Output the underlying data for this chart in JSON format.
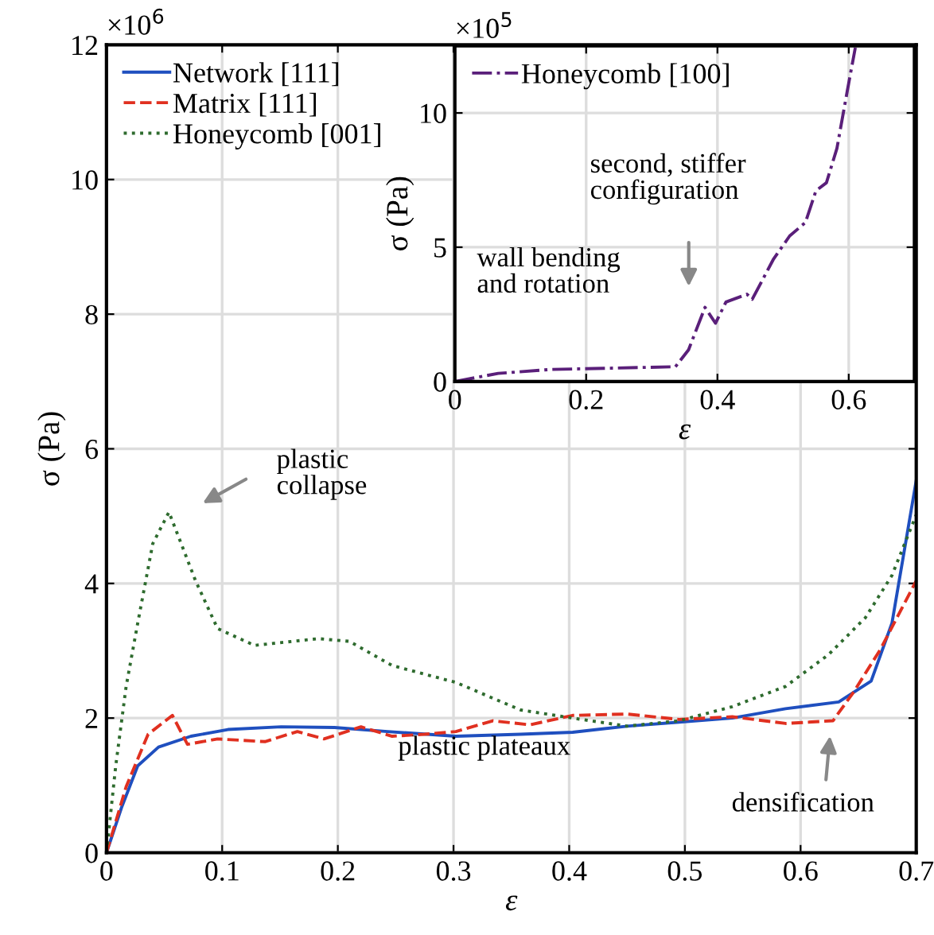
{
  "chart_data": [
    {
      "type": "line",
      "xlabel": "ε",
      "ylabel": "σ (Pa)",
      "xlim": [
        0,
        0.7
      ],
      "ylim": [
        0,
        12
      ],
      "xticks": [
        0,
        0.1,
        0.2,
        0.3,
        0.4,
        0.5,
        0.6,
        0.7
      ],
      "yticks": [
        0,
        2,
        4,
        6,
        8,
        10,
        12
      ],
      "grid": true,
      "legend": "top left",
      "series": [
        {
          "name": "Network [111]",
          "color": "#1f4fbf",
          "line_style": "solid",
          "x": [
            0,
            0.013,
            0.027,
            0.045,
            0.073,
            0.105,
            0.151,
            0.197,
            0.243,
            0.302,
            0.358,
            0.403,
            0.45,
            0.495,
            0.541,
            0.587,
            0.633,
            0.661,
            0.679,
            0.7
          ],
          "values": [
            0,
            0.67,
            1.29,
            1.57,
            1.73,
            1.83,
            1.87,
            1.86,
            1.8,
            1.73,
            1.76,
            1.79,
            1.88,
            1.94,
            2.0,
            2.14,
            2.24,
            2.55,
            3.41,
            5.53
          ]
        },
        {
          "name": "Matrix [111]",
          "color": "#e03020",
          "line_style": "dashed",
          "x": [
            0,
            0.017,
            0.036,
            0.057,
            0.07,
            0.096,
            0.137,
            0.165,
            0.188,
            0.22,
            0.247,
            0.275,
            0.302,
            0.334,
            0.366,
            0.403,
            0.45,
            0.495,
            0.541,
            0.587,
            0.628,
            0.646,
            0.669,
            0.7
          ],
          "values": [
            0,
            0.98,
            1.76,
            2.04,
            1.61,
            1.69,
            1.65,
            1.8,
            1.69,
            1.87,
            1.73,
            1.76,
            1.8,
            1.96,
            1.9,
            2.04,
            2.06,
            1.98,
            2.02,
            1.92,
            1.96,
            2.39,
            3.02,
            4.04
          ]
        },
        {
          "name": "Honeycomb [001]",
          "color": "#2e6b2e",
          "line_style": "dotted",
          "x": [
            0,
            0.008,
            0.017,
            0.027,
            0.04,
            0.054,
            0.077,
            0.096,
            0.128,
            0.183,
            0.21,
            0.247,
            0.302,
            0.358,
            0.403,
            0.45,
            0.495,
            0.541,
            0.587,
            0.624,
            0.656,
            0.679,
            0.7
          ],
          "values": [
            0,
            1.29,
            2.47,
            3.41,
            4.59,
            5.06,
            4.04,
            3.33,
            3.08,
            3.18,
            3.14,
            2.78,
            2.53,
            2.12,
            2.0,
            1.88,
            1.96,
            2.17,
            2.47,
            2.94,
            3.49,
            4.12,
            5.02
          ]
        }
      ],
      "annotations": [
        "×10$^{6}$",
        "plastic\ncollapse",
        "plastic plateaux",
        "densification"
      ]
    },
    {
      "type": "line",
      "xlabel": "ε",
      "ylabel": "σ (Pa)",
      "xlim": [
        0,
        0.7
      ],
      "ylim": [
        0,
        12.5
      ],
      "xticks": [
        0,
        0.2,
        0.4,
        0.6
      ],
      "yticks": [
        0,
        5,
        10
      ],
      "grid": true,
      "legend": "top left",
      "series": [
        {
          "name": "Honeycomb [100]",
          "color": "#5a1f7a",
          "line_style": "dashdot",
          "x": [
            0,
            0.066,
            0.147,
            0.227,
            0.336,
            0.356,
            0.381,
            0.397,
            0.413,
            0.445,
            0.453,
            0.485,
            0.51,
            0.534,
            0.55,
            0.566,
            0.582,
            0.598,
            0.61
          ],
          "values": [
            0,
            0.3,
            0.45,
            0.49,
            0.55,
            1.18,
            2.76,
            2.17,
            2.96,
            3.25,
            3.06,
            4.54,
            5.42,
            5.92,
            7.1,
            7.4,
            8.68,
            10.85,
            12.43
          ]
        }
      ],
      "annotations": [
        "×10$^{5}$",
        "second, stiffer\nconfiguration",
        "wall bending\nand rotation"
      ]
    }
  ]
}
